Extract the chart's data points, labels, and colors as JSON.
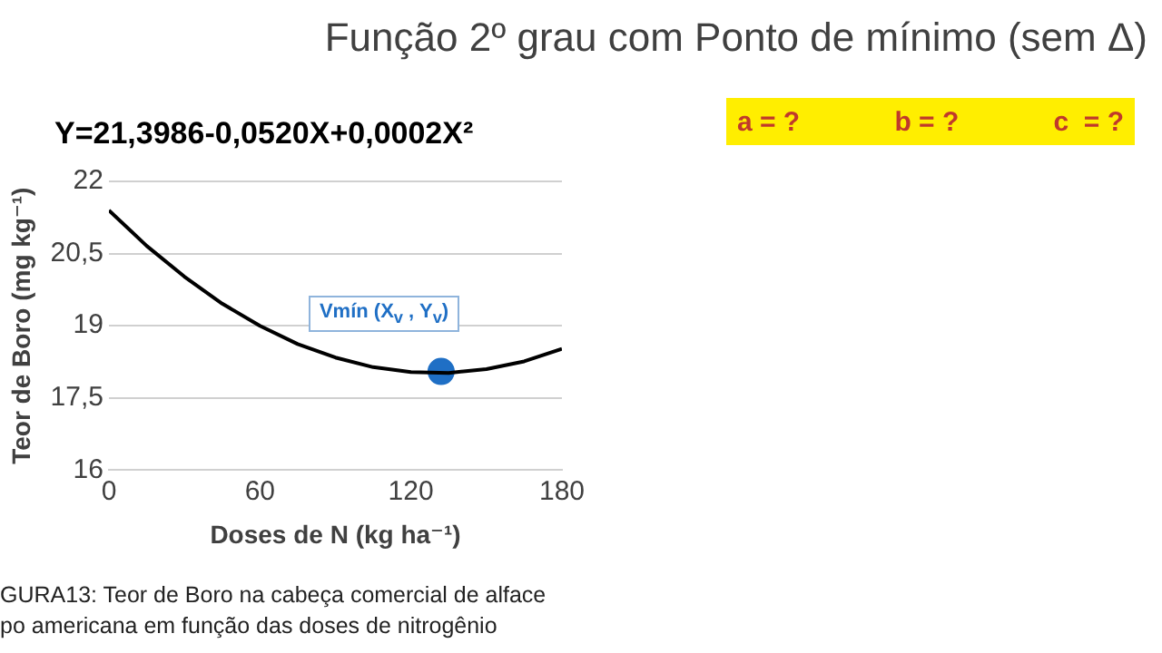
{
  "chart_data": {
    "type": "line",
    "title": "Função 2º grau com Ponto de mínimo (sem Δ)",
    "subtitle": "Y=21,3986-0,0520X+0,0002X²",
    "xlabel": "Doses de N (kg ha⁻¹)",
    "ylabel": "Teor de Boro (mg kg⁻¹)",
    "x": [
      0,
      15,
      30,
      45,
      60,
      75,
      90,
      105,
      120,
      135,
      150,
      165,
      180
    ],
    "series": [
      {
        "type": "line",
        "color": "#000000",
        "marker": "none",
        "values": [
          21.4,
          20.66,
          20.02,
          19.46,
          19.0,
          18.62,
          18.34,
          18.14,
          18.04,
          18.02,
          18.1,
          18.26,
          18.52
        ]
      },
      {
        "type": "scatter",
        "color": "#1f6fc5",
        "marker": "circle",
        "x": [
          132
        ],
        "values": [
          18.05
        ]
      }
    ],
    "xlim": [
      0,
      180
    ],
    "xticks": [
      0,
      60,
      120,
      180
    ],
    "ylim": [
      16,
      22
    ],
    "yticks": [
      16,
      {
        "value": 17.5,
        "label": "17,5"
      },
      19,
      {
        "value": 20.5,
        "label": "20,5"
      },
      22
    ],
    "grid": "y",
    "legend": false,
    "annotations": [
      {
        "text": "Vmín  (X$_{v}$ , Y$_{v}$)",
        "x": 132,
        "y": 18.05
      },
      "a = ?",
      "b = ?",
      "c  = ?",
      "GURA13: Teor de Boro na cabeça comercial de alface",
      "po americana em função das doses de nitrogênio"
    ]
  }
}
